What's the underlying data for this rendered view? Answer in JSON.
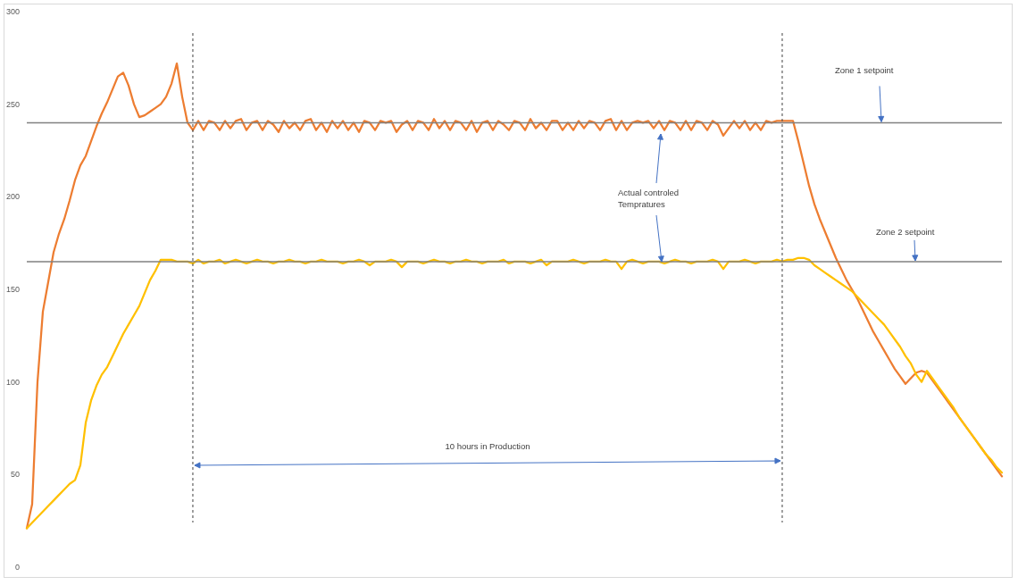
{
  "chart_data": {
    "type": "line",
    "categories": [
      null,
      null,
      null,
      null,
      null,
      null,
      null,
      null,
      null,
      null,
      null,
      null,
      null,
      null,
      null,
      null,
      null,
      null,
      null,
      null,
      null,
      null,
      null,
      null,
      null,
      null,
      null,
      null,
      null,
      null,
      null,
      null,
      null,
      null,
      null,
      null,
      null,
      null,
      null,
      null,
      null,
      null,
      null,
      null,
      null,
      null,
      null,
      null,
      null,
      null,
      null,
      null,
      null,
      null,
      null,
      null,
      null,
      null,
      null,
      null,
      null,
      null,
      null,
      null,
      null,
      null,
      null,
      null,
      null,
      null,
      null,
      null,
      null,
      null,
      null,
      null,
      null,
      null,
      null,
      null,
      null,
      null,
      null,
      null,
      null,
      null,
      null,
      null,
      null,
      null,
      null,
      null,
      null,
      null,
      null,
      null,
      null,
      null,
      null,
      null,
      null,
      null,
      null,
      null,
      null,
      null,
      null,
      null,
      null,
      null,
      null,
      null,
      null,
      null,
      null,
      null,
      null,
      null,
      null,
      null,
      null,
      null,
      null,
      null,
      null,
      null,
      null,
      null,
      null,
      null,
      null,
      null,
      null,
      null,
      null,
      null,
      null,
      null,
      null,
      null,
      null,
      null,
      null,
      null,
      null,
      null,
      null,
      null,
      null,
      null,
      null,
      null,
      null,
      null,
      null,
      null,
      null,
      null,
      null,
      null,
      null,
      null,
      null,
      null,
      null,
      null,
      null,
      null,
      null,
      null,
      null,
      null,
      null,
      null,
      null,
      null,
      null,
      null,
      null,
      null,
      null,
      null,
      null
    ],
    "series": [
      {
        "color": "#ed7d31",
        "values": [
          21,
          34,
          100,
          138,
          154,
          170,
          180,
          188,
          198,
          209,
          217,
          222,
          230,
          238,
          245,
          251,
          258,
          265,
          267,
          260,
          250,
          243,
          244,
          246,
          248,
          250,
          254,
          261,
          272,
          254,
          240,
          236,
          241,
          236,
          241,
          240,
          236,
          241,
          237,
          241,
          242,
          236,
          240,
          241,
          236,
          241,
          239,
          235,
          241,
          237,
          240,
          236,
          241,
          242,
          236,
          240,
          235,
          241,
          237,
          241,
          236,
          240,
          235,
          241,
          240,
          236,
          241,
          240,
          241,
          235,
          239,
          241,
          236,
          241,
          240,
          236,
          242,
          237,
          241,
          236,
          241,
          240,
          236,
          241,
          235,
          240,
          241,
          236,
          241,
          239,
          236,
          241,
          240,
          236,
          242,
          237,
          240,
          236,
          241,
          241,
          236,
          240,
          236,
          241,
          237,
          241,
          240,
          236,
          241,
          242,
          236,
          241,
          236,
          240,
          241,
          240,
          241,
          237,
          241,
          236,
          241,
          240,
          236,
          241,
          236,
          241,
          240,
          236,
          241,
          239,
          233,
          237,
          241,
          237,
          241,
          236,
          240,
          236,
          241,
          240,
          241,
          241,
          241,
          241,
          230,
          218,
          206,
          196,
          188,
          181,
          174,
          167,
          161,
          155,
          150,
          145,
          139,
          133,
          127,
          122,
          117,
          112,
          107,
          103,
          99,
          102,
          105,
          106,
          105,
          101,
          97,
          93,
          89,
          85,
          81,
          77,
          73,
          69,
          65,
          61,
          57,
          53,
          49
        ]
      },
      {
        "color": "#ffc000",
        "values": [
          21,
          24,
          27,
          30,
          33,
          36,
          39,
          42,
          45,
          47,
          55,
          78,
          90,
          98,
          104,
          108,
          114,
          120,
          126,
          131,
          136,
          141,
          148,
          155,
          160,
          166,
          166,
          166,
          165,
          165,
          165,
          164,
          166,
          164,
          165,
          165,
          166,
          164,
          165,
          166,
          165,
          164,
          165,
          166,
          165,
          165,
          164,
          165,
          165,
          166,
          165,
          165,
          164,
          165,
          165,
          166,
          165,
          165,
          165,
          164,
          165,
          165,
          166,
          165,
          163,
          165,
          165,
          165,
          166,
          165,
          162,
          165,
          165,
          165,
          164,
          165,
          166,
          165,
          165,
          164,
          165,
          165,
          166,
          165,
          165,
          164,
          165,
          165,
          165,
          166,
          164,
          165,
          165,
          165,
          164,
          165,
          166,
          163,
          165,
          165,
          165,
          165,
          166,
          165,
          164,
          165,
          165,
          165,
          166,
          165,
          165,
          161,
          165,
          166,
          165,
          164,
          165,
          165,
          165,
          164,
          165,
          166,
          165,
          165,
          164,
          165,
          165,
          165,
          166,
          165,
          161,
          165,
          165,
          165,
          166,
          165,
          164,
          165,
          165,
          165,
          166,
          165,
          166,
          166,
          167,
          167,
          166,
          163,
          161,
          159,
          157,
          155,
          153,
          151,
          149,
          146,
          143,
          140,
          137,
          134,
          131,
          127,
          123,
          119,
          114,
          110,
          104,
          100,
          106,
          102,
          98,
          94,
          90,
          86,
          81,
          77,
          73,
          69,
          65,
          61,
          58,
          54,
          51
        ]
      }
    ],
    "ylim": [
      0,
      300
    ],
    "yticks": [
      0,
      50,
      100,
      150,
      200,
      250,
      300
    ],
    "tick_labels": "y",
    "ref_lines": [
      {
        "axis": "y",
        "value": 240,
        "label": "Zone 1 setpoint",
        "color": "#808080"
      },
      {
        "axis": "y",
        "value": 165,
        "label": "Zone 2 setpoint",
        "color": "#808080"
      }
    ],
    "annotations": [
      "Actual controled Tempratures",
      "10 hours in Production"
    ]
  }
}
